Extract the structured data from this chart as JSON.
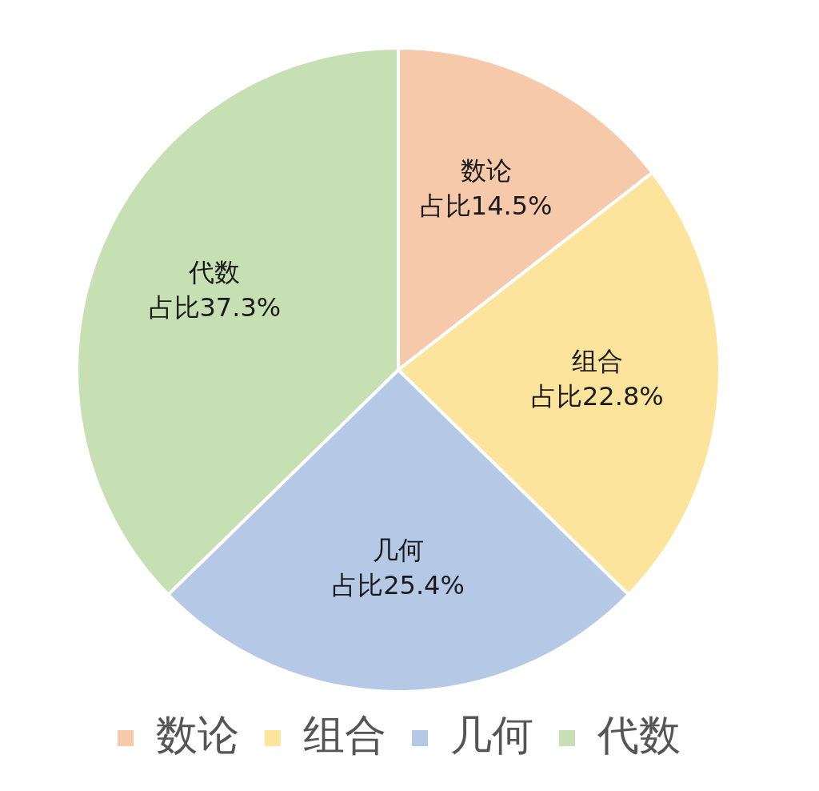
{
  "chart_data": {
    "type": "pie",
    "categories": [
      "数论",
      "组合",
      "几何",
      "代数"
    ],
    "values": [
      14.5,
      22.8,
      25.4,
      37.3
    ],
    "colors": [
      "#f6c9ab",
      "#fde49c",
      "#b5c8e6",
      "#c6e0b4"
    ],
    "value_labels": [
      "占比14.5%",
      "占比22.8%",
      "占比25.4%",
      "占比37.3%"
    ],
    "legend": "bottom"
  }
}
